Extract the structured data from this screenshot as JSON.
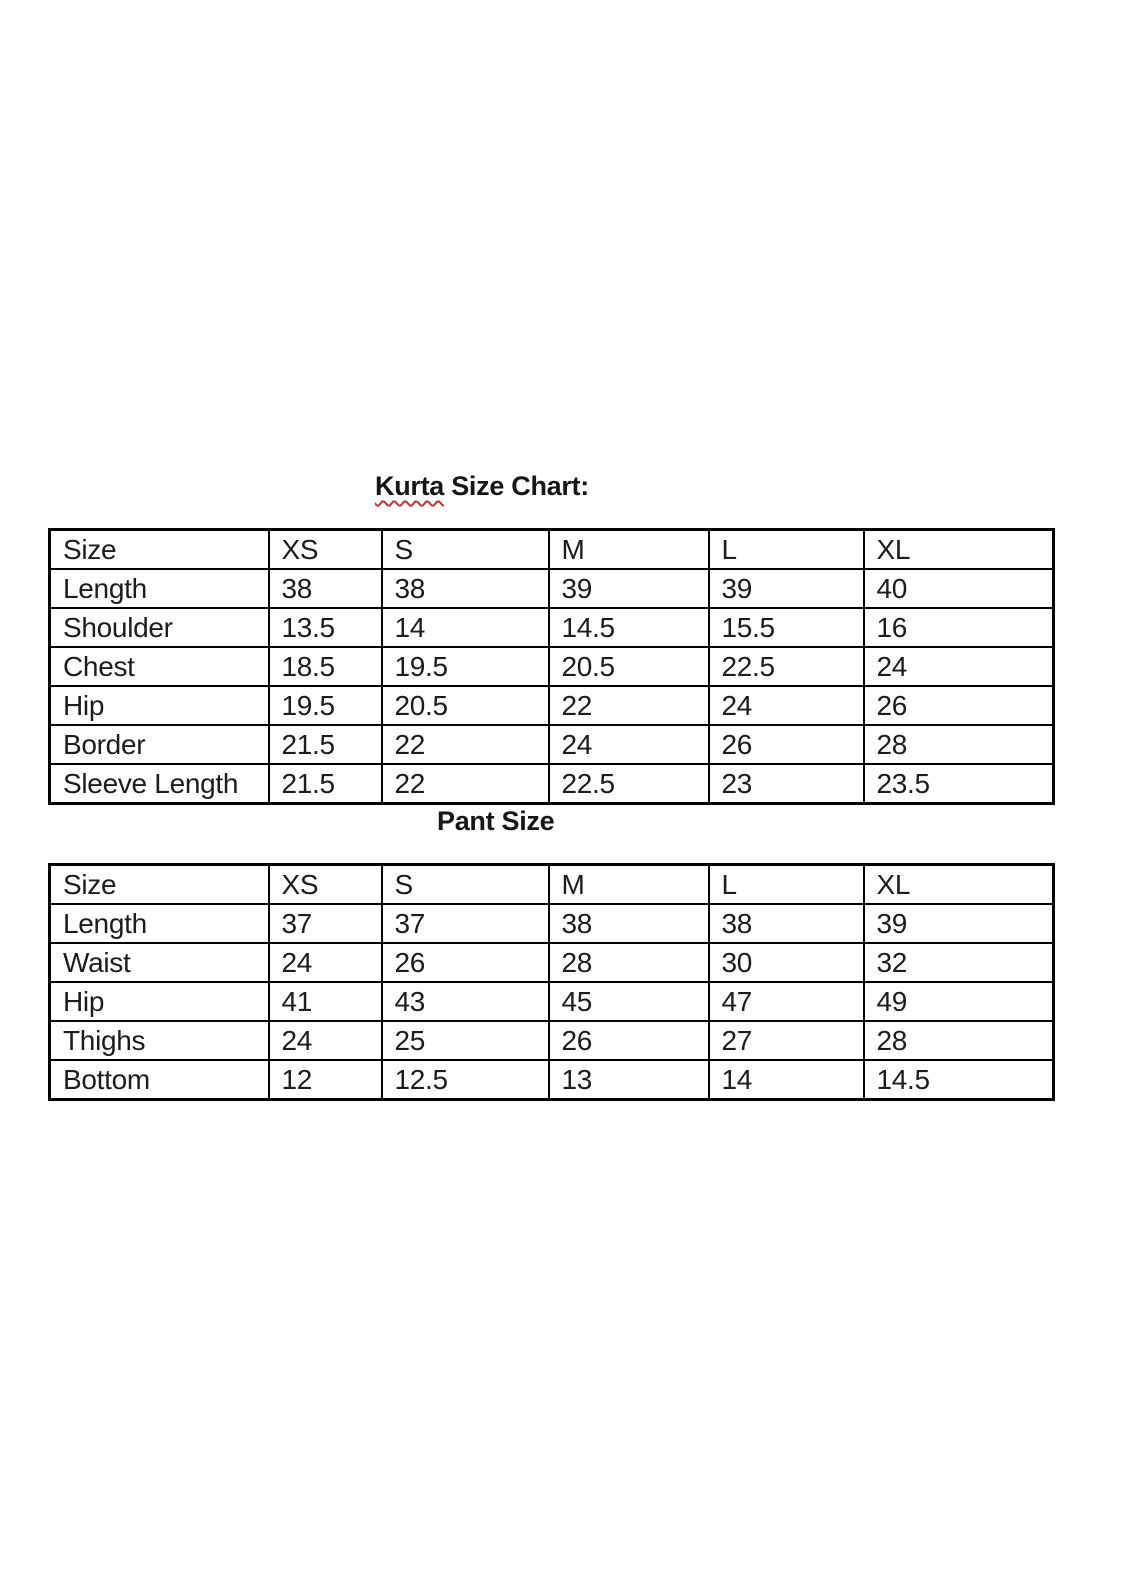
{
  "kurta": {
    "title_word": "Kurta",
    "title_rest": " Size Chart:",
    "columns": [
      "Size",
      "XS",
      "S",
      "M",
      "L",
      "XL"
    ],
    "rows": [
      {
        "label": "Length",
        "values": [
          "38",
          "38",
          "39",
          "39",
          "40"
        ]
      },
      {
        "label": "Shoulder",
        "values": [
          "13.5",
          "14",
          "14.5",
          "15.5",
          "16"
        ]
      },
      {
        "label": "Chest",
        "values": [
          "18.5",
          "19.5",
          "20.5",
          "22.5",
          "24"
        ]
      },
      {
        "label": "Hip",
        "values": [
          "19.5",
          "20.5",
          "22",
          "24",
          "26"
        ]
      },
      {
        "label": "Border",
        "values": [
          "21.5",
          "22",
          "24",
          "26",
          "28"
        ]
      },
      {
        "label": "Sleeve Length",
        "values": [
          "21.5",
          "22",
          "22.5",
          "23",
          "23.5"
        ]
      }
    ]
  },
  "pant": {
    "title": "Pant Size",
    "columns": [
      "Size",
      "XS",
      "S",
      "M",
      "L",
      "XL"
    ],
    "rows": [
      {
        "label": "Length",
        "values": [
          "37",
          "37",
          "38",
          "38",
          "39"
        ]
      },
      {
        "label": "Waist",
        "values": [
          "24",
          "26",
          "28",
          "30",
          "32"
        ]
      },
      {
        "label": "Hip",
        "values": [
          "41",
          "43",
          "45",
          "47",
          "49"
        ]
      },
      {
        "label": "Thighs",
        "values": [
          "24",
          "25",
          "26",
          "27",
          "28"
        ]
      },
      {
        "label": "Bottom",
        "values": [
          "12",
          "12.5",
          "13",
          "14",
          "14.5"
        ]
      }
    ]
  },
  "colors": {
    "background": "#ffffff",
    "text": "#1c1c1c",
    "table_border": "#000000",
    "spellcheck_underline": "#b13a3a"
  }
}
